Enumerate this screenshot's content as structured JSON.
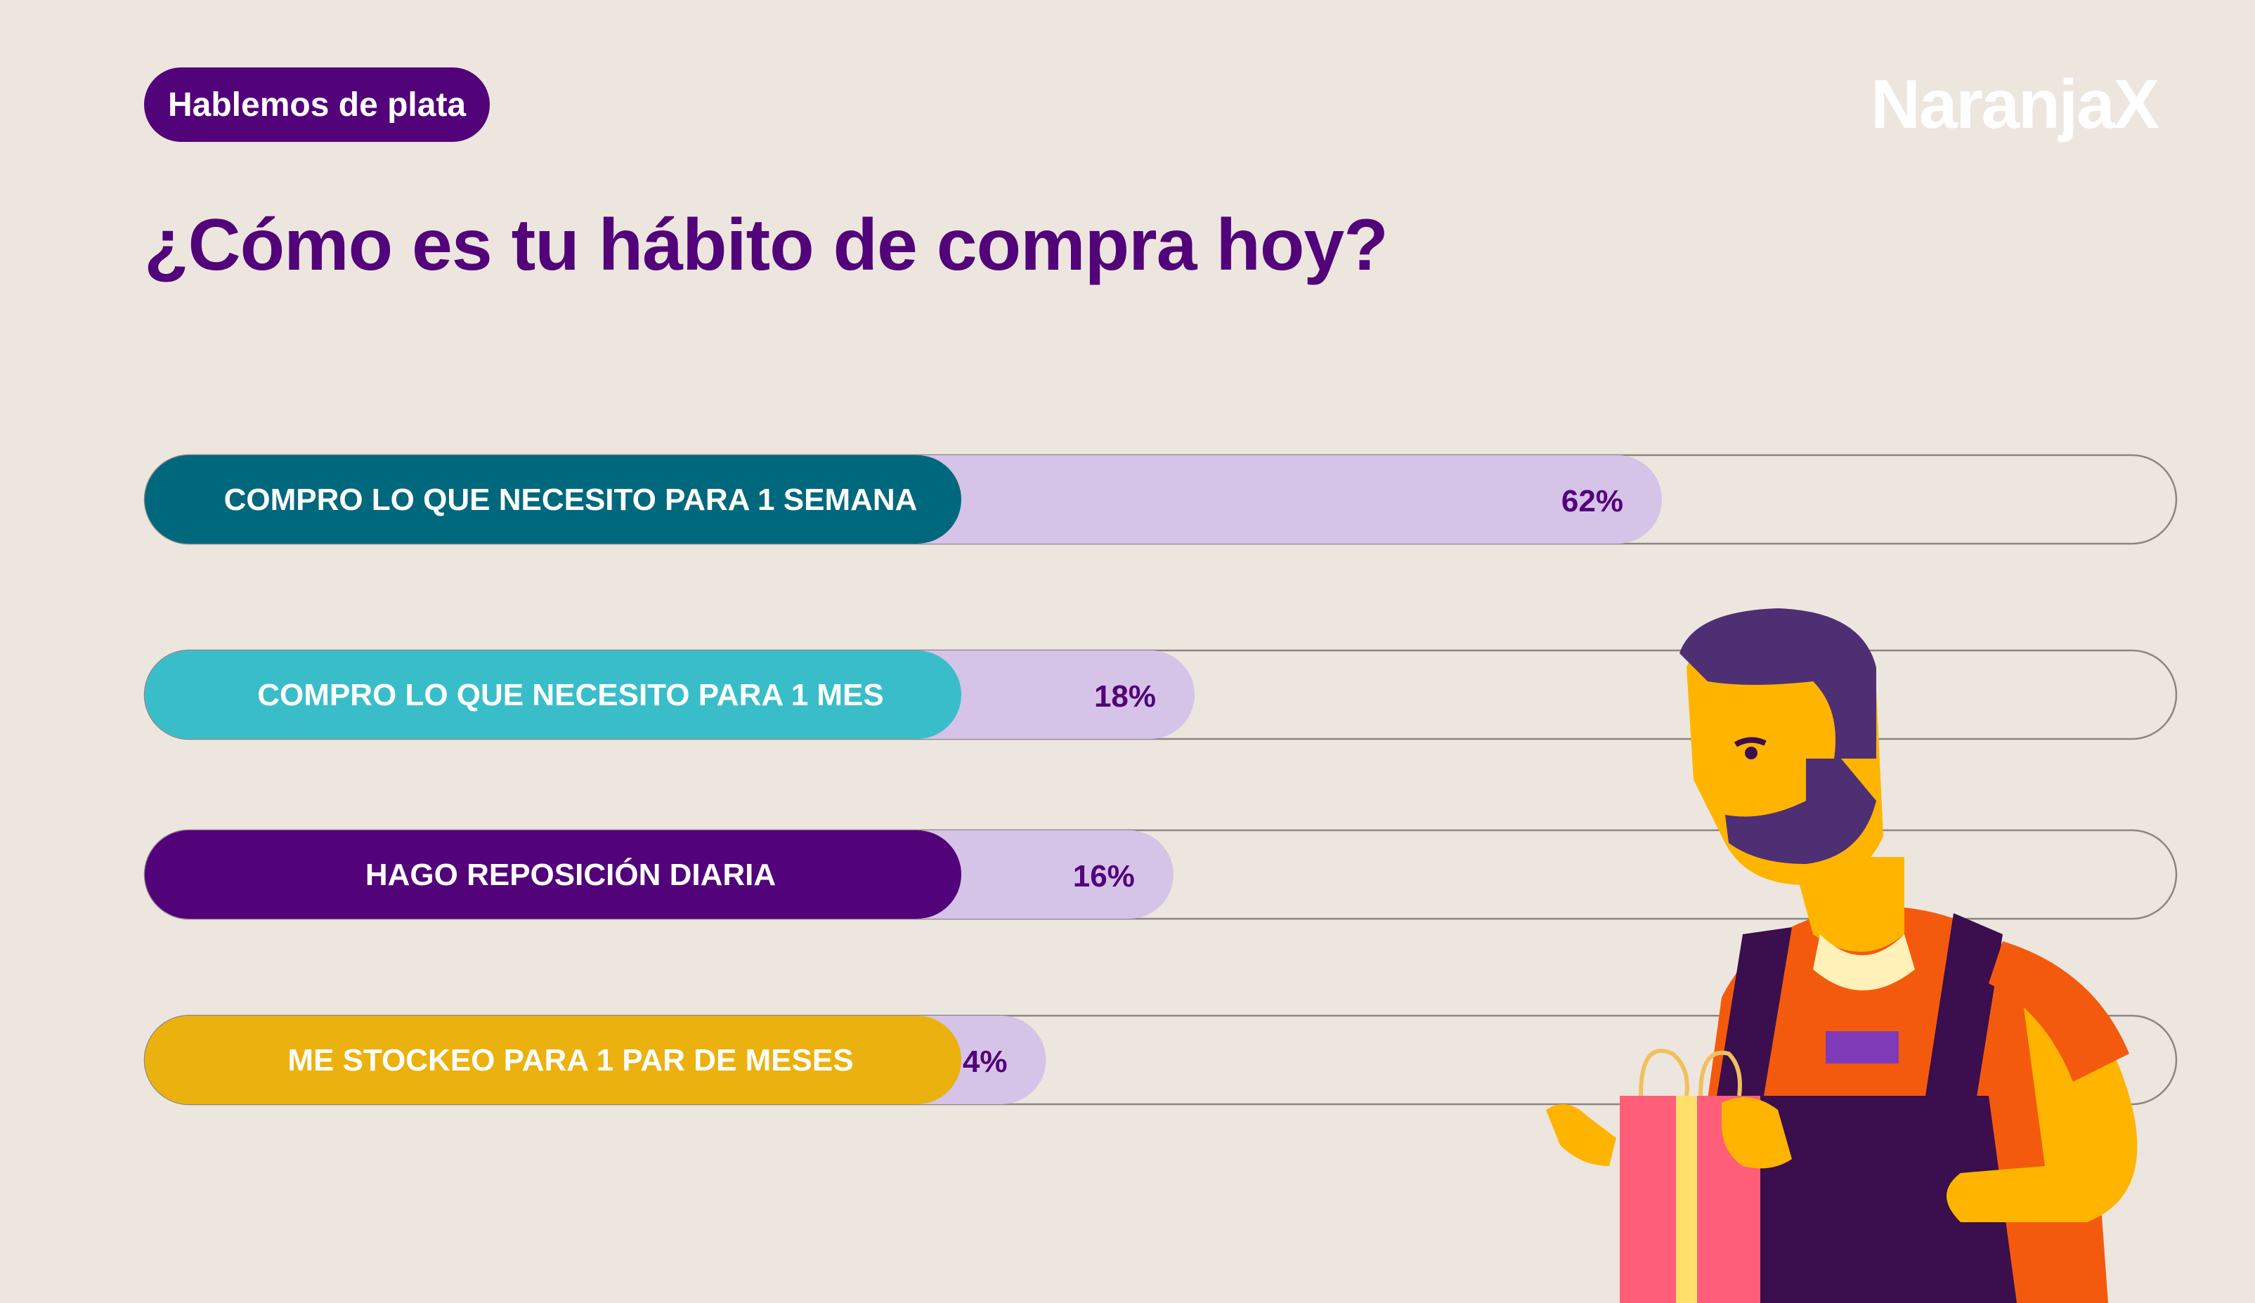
{
  "header": {
    "badge": "Hablemos de plata",
    "logo": "NaranjaX",
    "title": "¿Cómo es tu hábito de compra hoy?"
  },
  "colors": {
    "background": "#ede6df",
    "brand_purple": "#52037a",
    "value_bar": "#d6c3e8"
  },
  "chart_data": {
    "type": "bar",
    "orientation": "horizontal",
    "categories": [
      "COMPRO LO QUE NECESITO PARA 1 SEMANA",
      "COMPRO LO QUE NECESITO PARA 1 MES",
      "HAGO REPOSICIÓN DIARIA",
      "ME STOCKEO PARA 1 PAR DE MESES"
    ],
    "values": [
      62,
      18,
      16,
      4
    ],
    "value_labels": [
      "62%",
      "18%",
      "16%",
      "4%"
    ],
    "category_colors": [
      "#00687c",
      "#39bec9",
      "#52037a",
      "#ebb10f"
    ],
    "xlim": [
      0,
      100
    ],
    "grid": false,
    "legend": "none"
  },
  "illustration": {
    "icon": "shopper-man-with-bag-icon"
  }
}
